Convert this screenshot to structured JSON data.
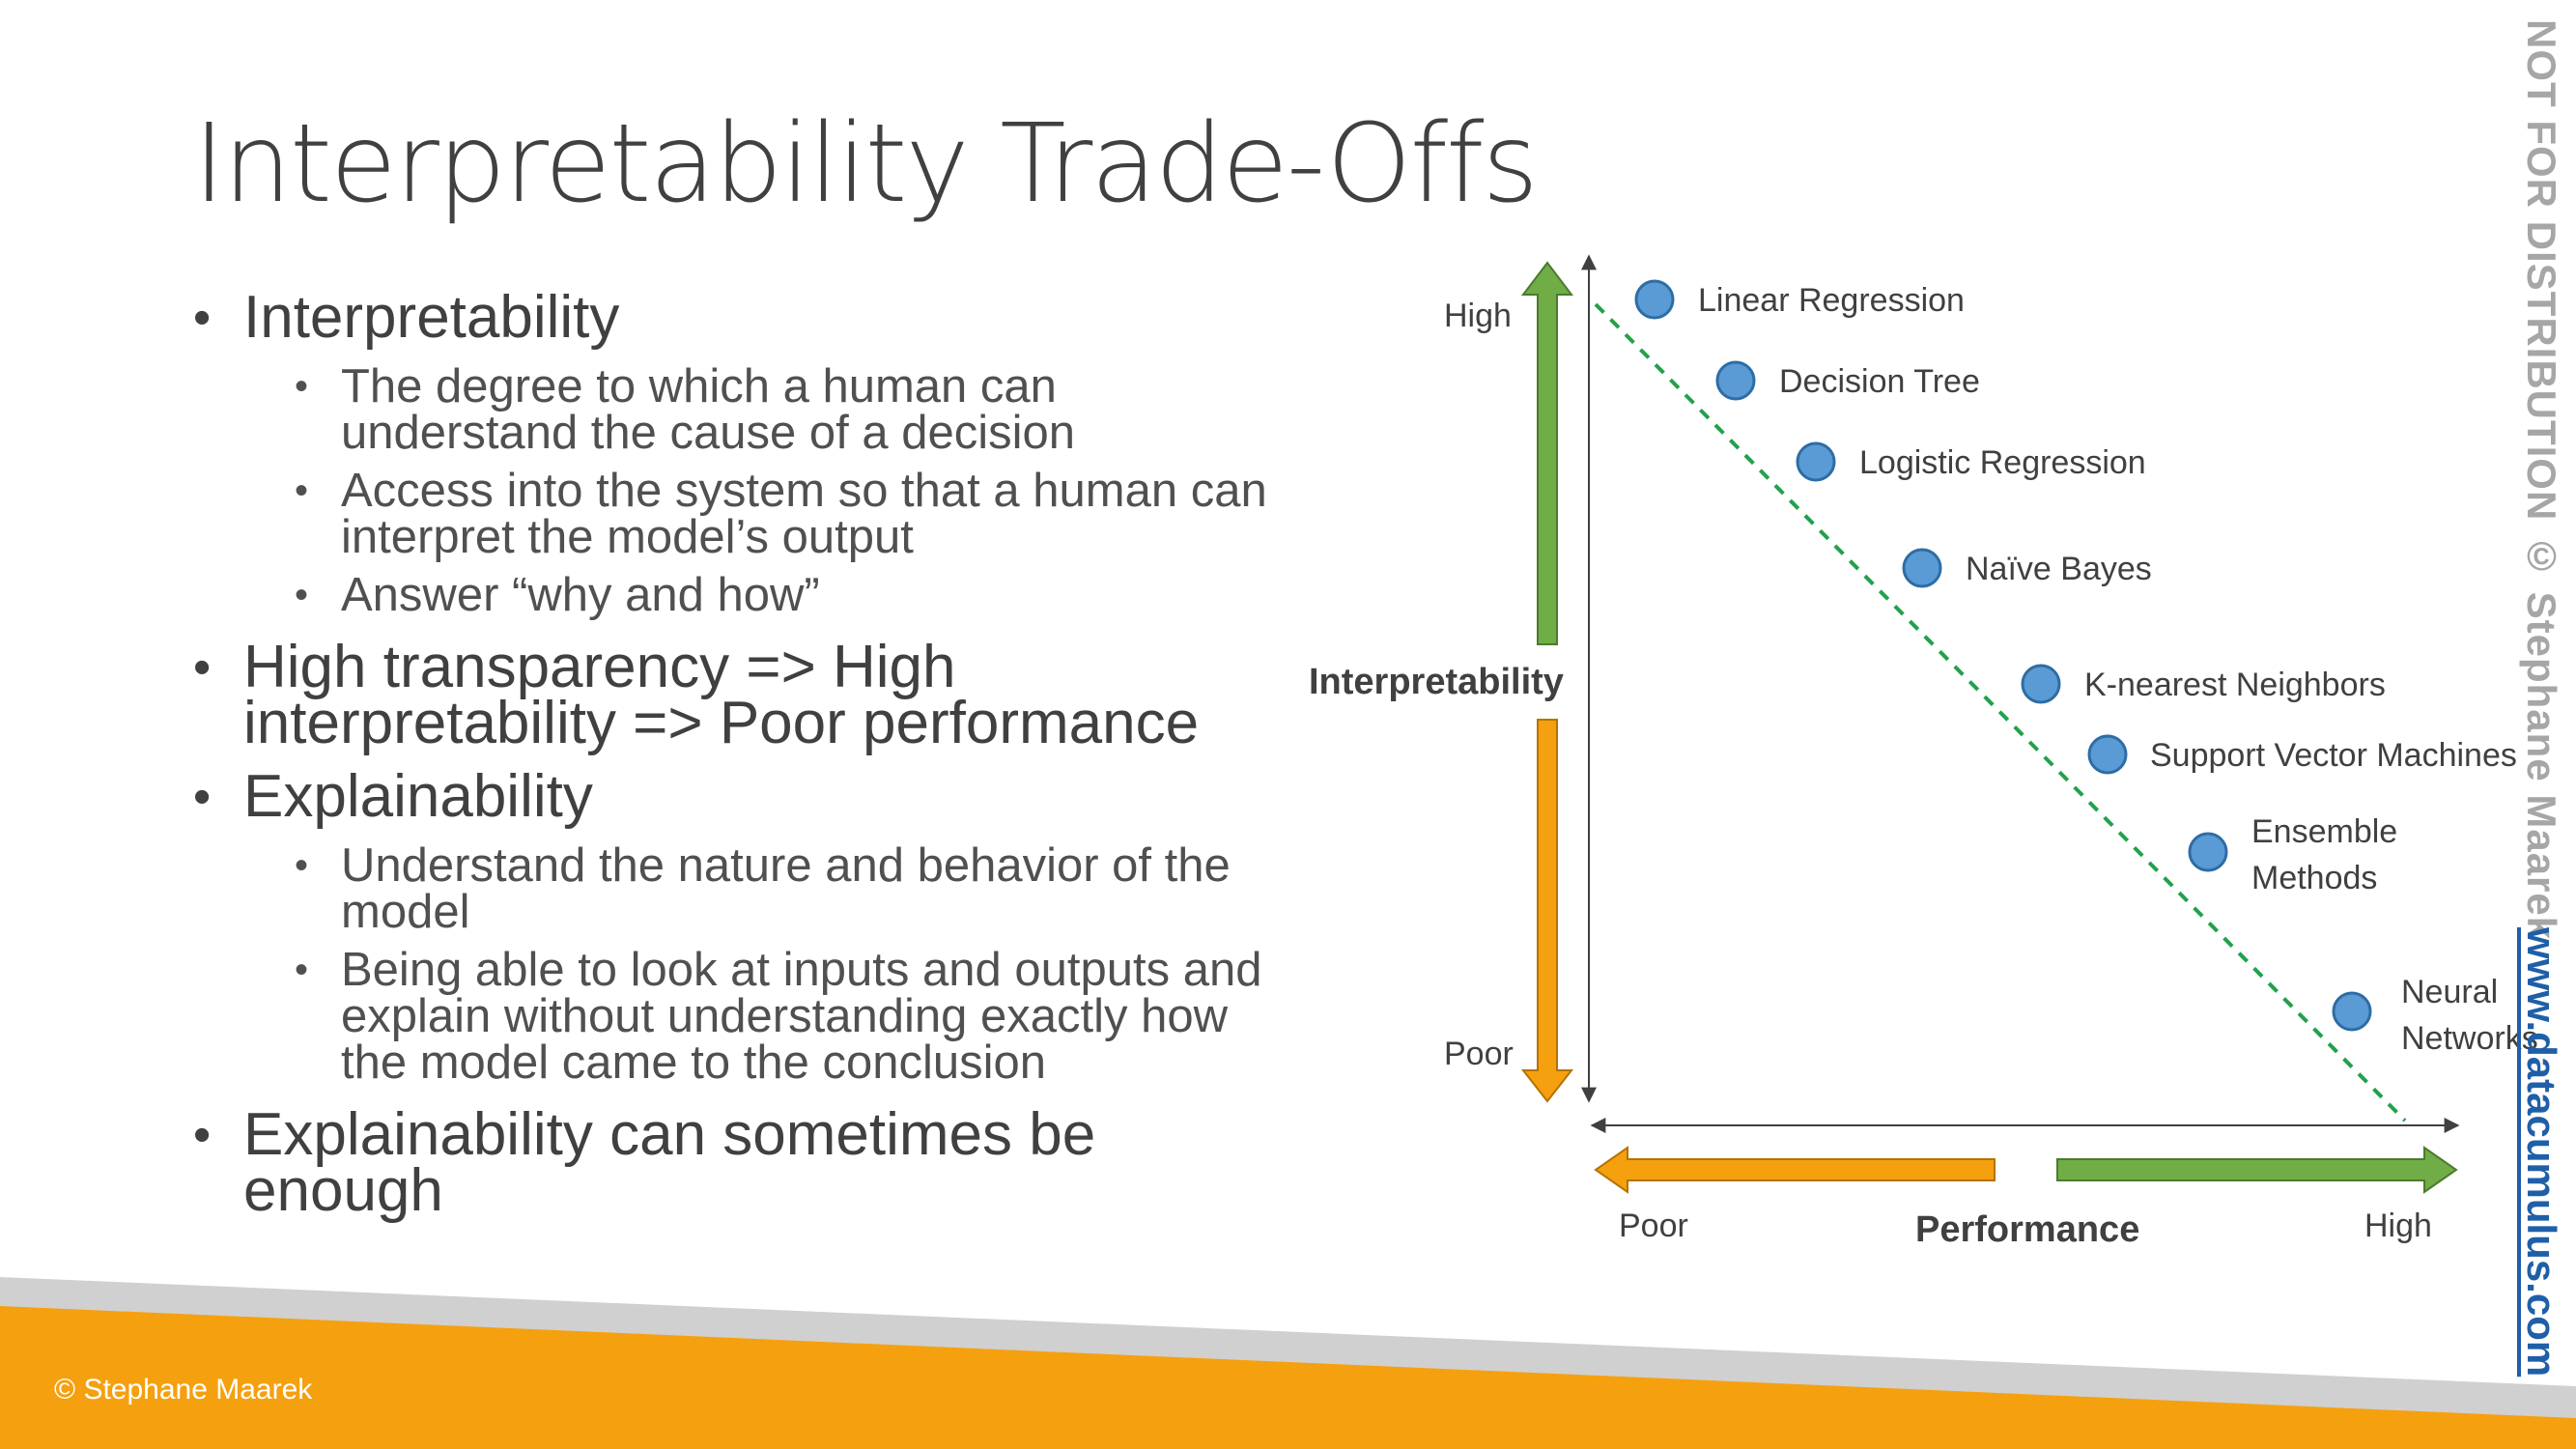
{
  "title": "Interpretability Trade-Offs",
  "bullets": [
    {
      "text": "Interpretability",
      "sub": [
        "The degree to which a human can understand the cause of a decision",
        "Access into the system so that a human can interpret the model’s output",
        "Answer “why and how”"
      ]
    },
    {
      "text": "High transparency => High interpretability => Poor performance",
      "sub": []
    },
    {
      "text": "Explainability",
      "sub": [
        "Understand the nature and behavior of the model",
        "Being able to look at inputs and outputs and explain without understanding exactly how the model came to the conclusion"
      ]
    },
    {
      "text": "Explainability can sometimes be enough",
      "sub": []
    }
  ],
  "diagram": {
    "y_axis_label": "Interpretability",
    "y_high": "High",
    "y_poor": "Poor",
    "x_axis_label": "Performance",
    "x_poor": "Poor",
    "x_high": "High",
    "models": [
      {
        "label": "Linear Regression"
      },
      {
        "label": "Decision Tree"
      },
      {
        "label": "Logistic Regression"
      },
      {
        "label": "Naïve Bayes"
      },
      {
        "label": "K-nearest Neighbors"
      },
      {
        "label": "Support Vector Machines"
      },
      {
        "label": "Ensemble Methods"
      },
      {
        "label": "Neural Networks"
      }
    ],
    "colors": {
      "dot": "#5b9bd5",
      "dot_stroke": "#2e6da4",
      "green": "#70ad47",
      "orange": "#f5a00f",
      "trend": "#22a14a"
    }
  },
  "watermark": "NOT FOR DISTRIBUTION © Stephane Maarek",
  "website": "www.datacumulus.com",
  "copyright": "© Stephane Maarek"
}
